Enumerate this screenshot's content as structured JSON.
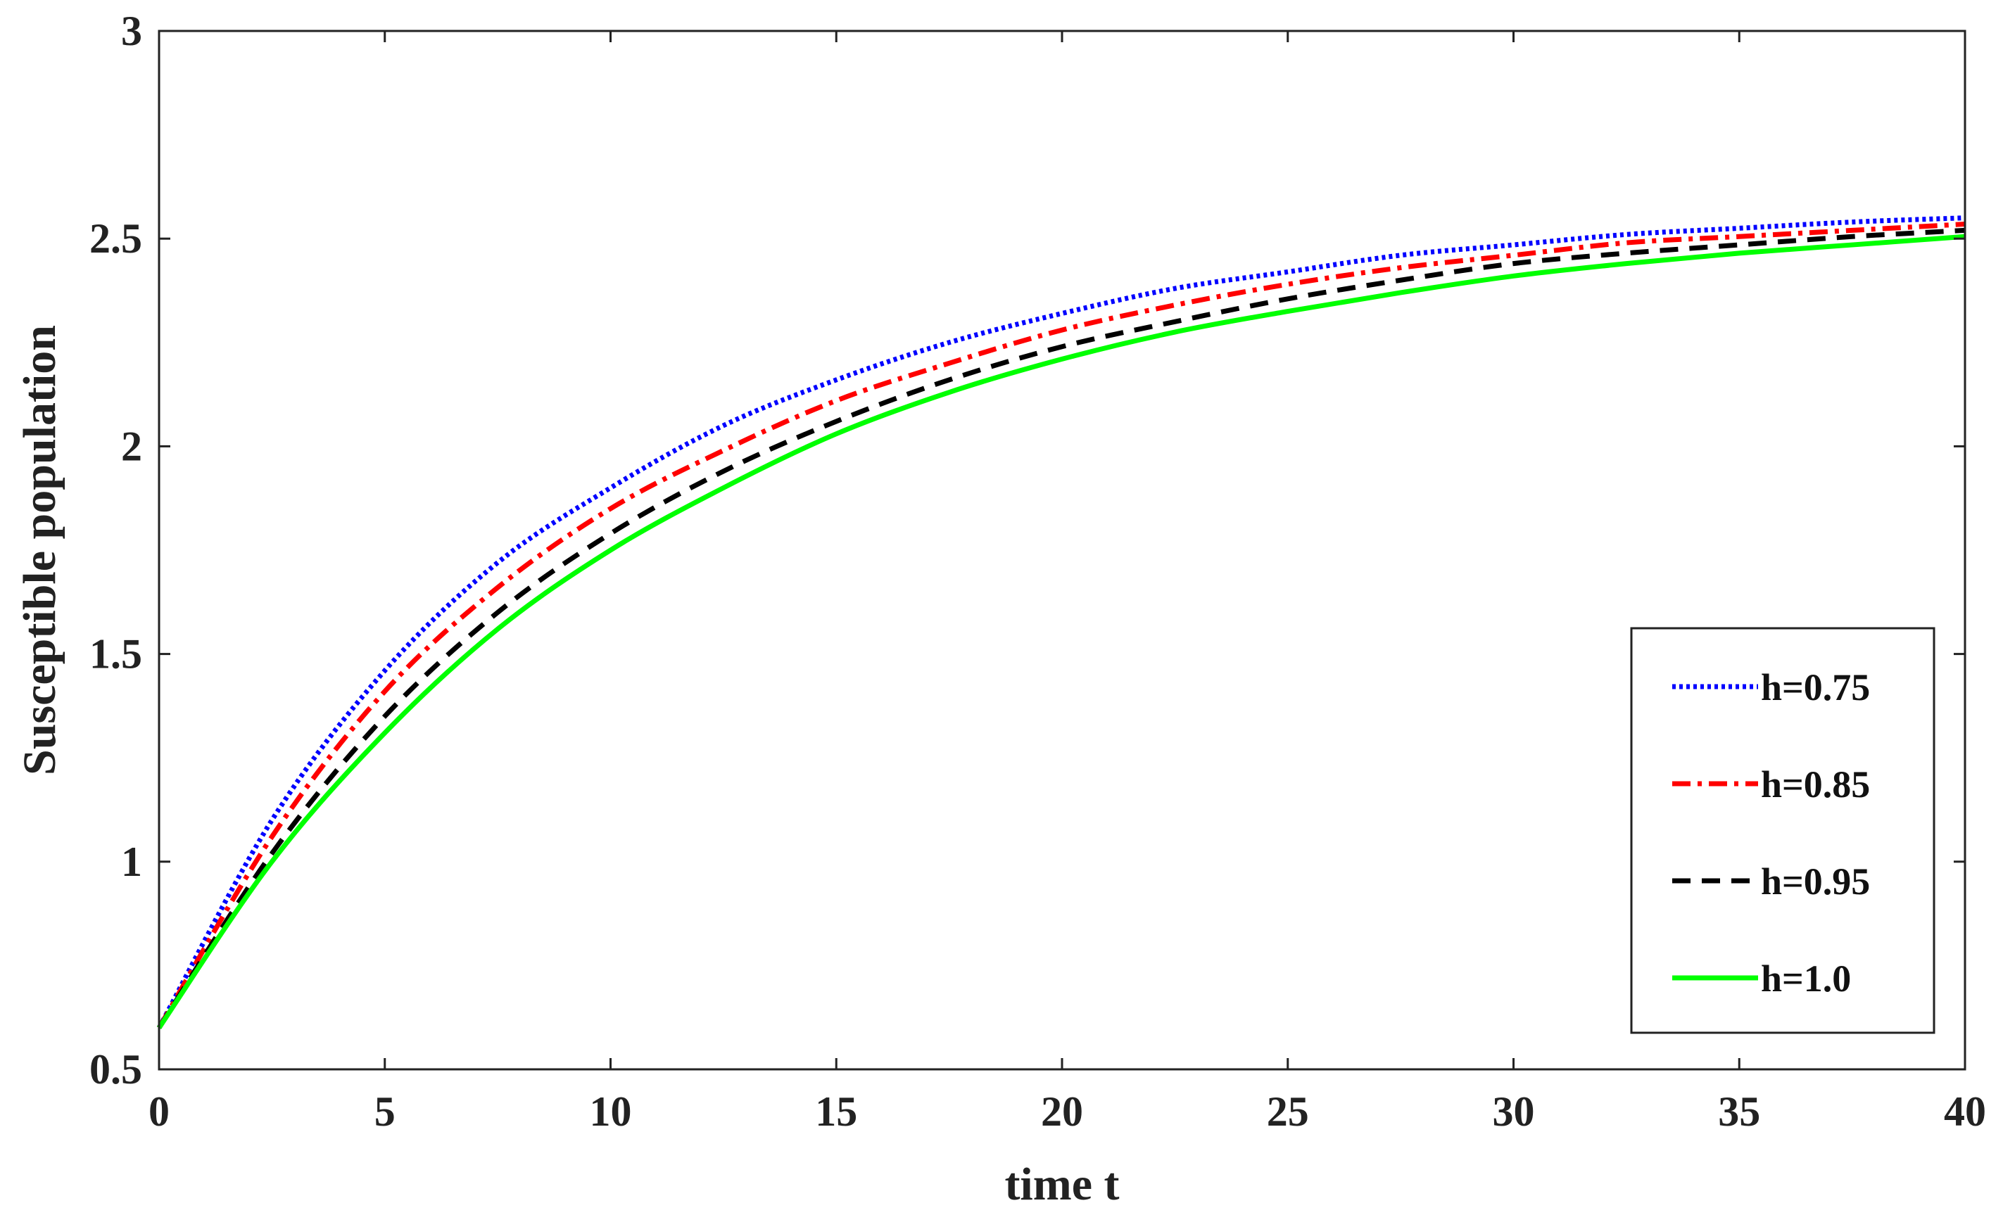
{
  "chart_data": {
    "type": "line",
    "title": "",
    "xlabel": "time t",
    "ylabel": "Susceptible population",
    "xlim": [
      0,
      40
    ],
    "ylim": [
      0.5,
      3
    ],
    "xticks": [
      0,
      5,
      10,
      15,
      20,
      25,
      30,
      35,
      40
    ],
    "yticks": [
      0.5,
      1,
      1.5,
      2,
      2.5,
      3
    ],
    "xtick_labels": [
      "0",
      "5",
      "10",
      "15",
      "20",
      "25",
      "30",
      "35",
      "40"
    ],
    "ytick_labels": [
      "0.5",
      "1",
      "1.5",
      "2",
      "2.5",
      "3"
    ],
    "grid": false,
    "legend_position": "lower-right",
    "x": [
      0,
      2.5,
      5,
      7.5,
      10,
      12.5,
      15,
      17.5,
      20,
      22.5,
      25,
      27.5,
      30,
      32.5,
      35,
      37.5,
      40
    ],
    "series": [
      {
        "name": "h=0.75",
        "color": "#0000ff",
        "style": "dotted",
        "values": [
          0.6,
          1.1,
          1.46,
          1.72,
          1.9,
          2.05,
          2.16,
          2.25,
          2.32,
          2.38,
          2.42,
          2.46,
          2.485,
          2.51,
          2.525,
          2.54,
          2.55
        ]
      },
      {
        "name": "h=0.85",
        "color": "#ff0000",
        "style": "dash-dot",
        "values": [
          0.6,
          1.06,
          1.41,
          1.66,
          1.85,
          1.99,
          2.11,
          2.2,
          2.28,
          2.34,
          2.39,
          2.43,
          2.46,
          2.49,
          2.505,
          2.52,
          2.535
        ]
      },
      {
        "name": "h=0.95",
        "color": "#000000",
        "style": "dashed",
        "values": [
          0.6,
          1.02,
          1.35,
          1.6,
          1.79,
          1.94,
          2.06,
          2.16,
          2.24,
          2.3,
          2.355,
          2.4,
          2.44,
          2.465,
          2.485,
          2.505,
          2.52
        ]
      },
      {
        "name": "h=1.0",
        "color": "#00ff00",
        "style": "solid",
        "values": [
          0.6,
          1.0,
          1.31,
          1.56,
          1.75,
          1.9,
          2.03,
          2.13,
          2.21,
          2.275,
          2.325,
          2.37,
          2.41,
          2.44,
          2.465,
          2.485,
          2.505
        ]
      }
    ]
  }
}
